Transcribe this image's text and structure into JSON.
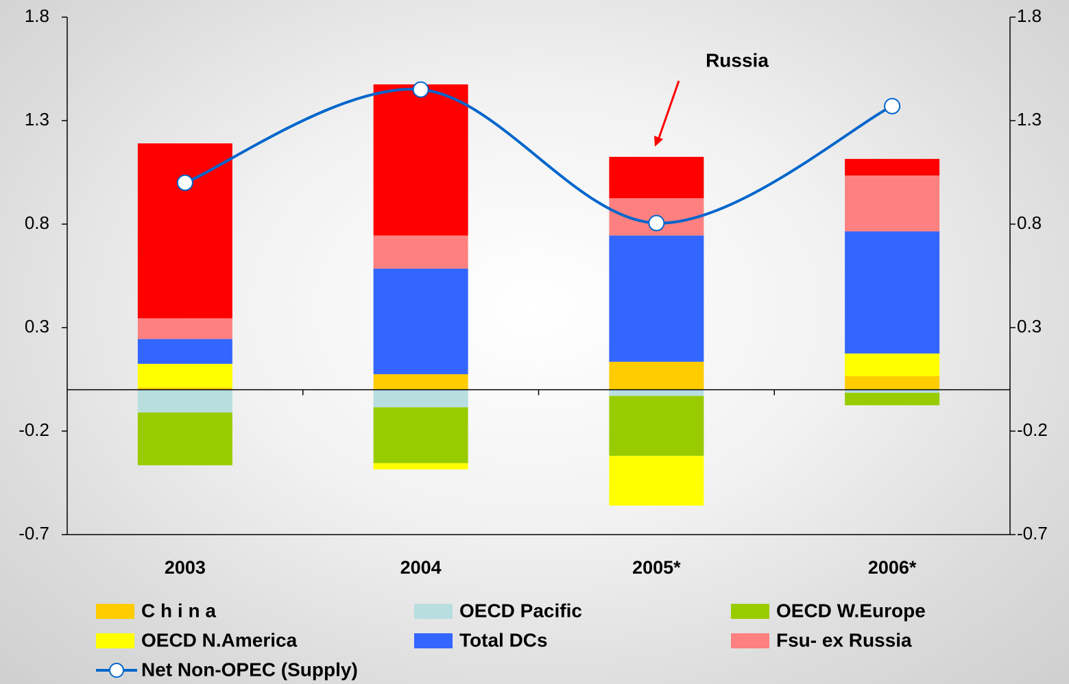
{
  "chart_data": {
    "type": "bar",
    "stacked": true,
    "categories": [
      "2003",
      "2004",
      "2005*",
      "2006*"
    ],
    "ylim": [
      -0.7,
      1.8
    ],
    "yticks": [
      -0.7,
      -0.2,
      0.3,
      0.8,
      1.3,
      1.8
    ],
    "y2lim": [
      -0.7,
      1.8
    ],
    "y2ticks": [
      -0.7,
      -0.2,
      0.3,
      0.8,
      1.3,
      1.8
    ],
    "grid": false,
    "series": [
      {
        "name": "C h i n a",
        "color": "#ffcc00",
        "values": [
          0.01,
          0.075,
          0.135,
          0.065
        ]
      },
      {
        "name": "OECD Pacific",
        "color": "#b8dee0",
        "values": [
          -0.11,
          -0.085,
          -0.03,
          -0.015
        ]
      },
      {
        "name": "OECD W.Europe",
        "color": "#99cc00",
        "values": [
          -0.255,
          -0.27,
          -0.29,
          -0.06
        ]
      },
      {
        "name": "OECD N.America",
        "color": "#ffff00",
        "values": [
          0.115,
          -0.03,
          -0.24,
          0.11
        ]
      },
      {
        "name": "Total DCs",
        "color": "#3366ff",
        "values": [
          0.12,
          0.51,
          0.61,
          0.59
        ]
      },
      {
        "name": "Fsu- ex Russia",
        "color": "#ff8080",
        "values": [
          0.1,
          0.16,
          0.18,
          0.27
        ]
      },
      {
        "name": "Russia",
        "color": "#ff0000",
        "legend": false,
        "values": [
          0.845,
          0.73,
          0.2,
          0.08
        ]
      },
      {
        "name": "Net Non-OPEC (Supply)",
        "type": "line",
        "color": "#0066cc",
        "values": [
          1.0,
          1.45,
          0.805,
          1.37
        ]
      }
    ]
  }
}
